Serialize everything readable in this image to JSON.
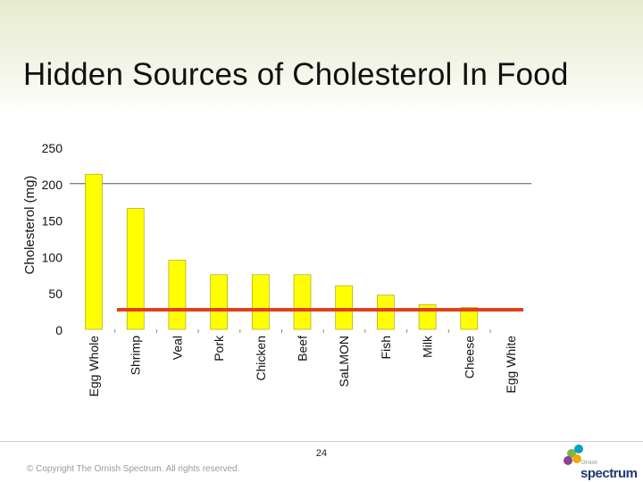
{
  "slide": {
    "title": "Hidden Sources of Cholesterol In Food",
    "page_number": "24",
    "copyright": "© Copyright The Ornish Spectrum. All rights reserved.",
    "logo_small": "Ornish",
    "logo_word": "spectrum"
  },
  "chart_data": {
    "type": "bar",
    "title": "",
    "xlabel": "",
    "ylabel": "Cholesterol (mg)",
    "ylim": [
      0,
      250
    ],
    "yticks": [
      0,
      50,
      100,
      150,
      200,
      250
    ],
    "categories": [
      "Egg Whole",
      "Shrimp",
      "Veal",
      "Pork",
      "Chicken",
      "Beef",
      "SaLMON",
      "Fish",
      "Milk",
      "Cheese",
      "Egg White"
    ],
    "values": [
      213,
      166,
      95,
      75,
      75,
      75,
      60,
      47,
      34,
      30,
      0
    ],
    "reference_line": {
      "value": 27,
      "color": "#e0401b"
    },
    "bar_color": "#ffff00",
    "bar_edge_color": "#999900",
    "gridline_at": 200,
    "legend": "none"
  }
}
